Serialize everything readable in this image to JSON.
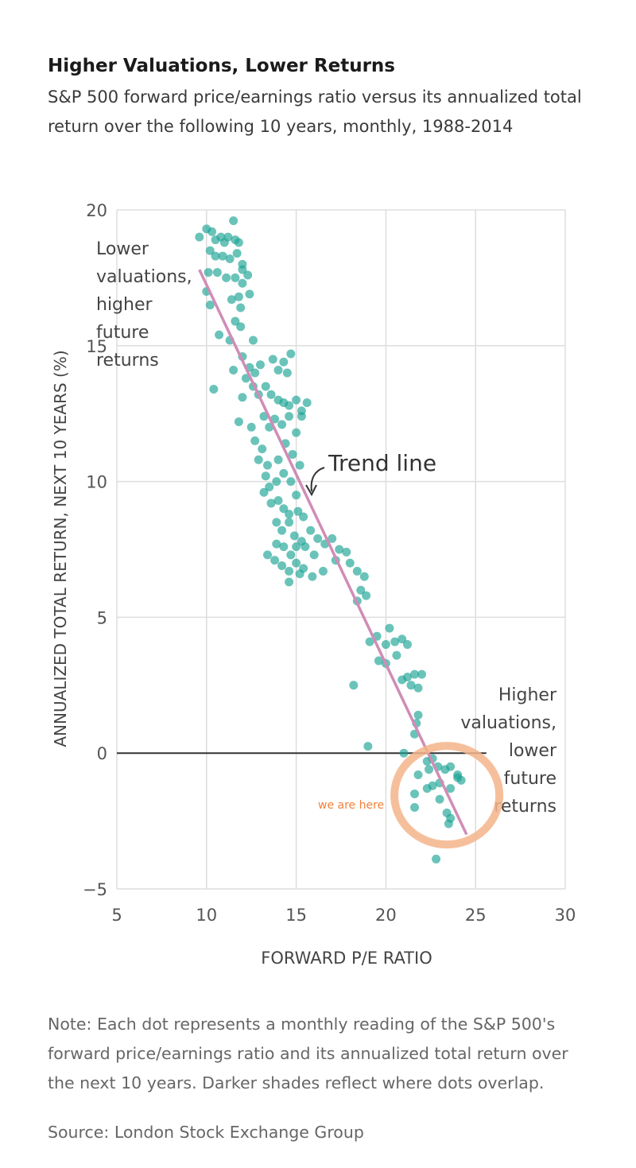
{
  "title": "Higher Valuations, Lower Returns",
  "subtitle": "S&P 500 forward price/earnings ratio versus its annualized total return over the following 10 years, monthly, 1988-2014",
  "note": "Note: Each dot represents a monthly reading of the S&P 500's forward price/earnings ratio and its annualized total return over the next 10 years. Darker shades reflect where dots overlap.",
  "source": "Source: London Stock Exchange Group",
  "colors": {
    "dots": "#1aa394",
    "trend": "#d08cb6",
    "circle": "#f5b48a",
    "we_are_here": "#f0813a",
    "zero_line": "#333333",
    "grid": "#dddddd"
  },
  "chart_data": {
    "type": "scatter",
    "xlabel": "FORWARD P/E RATIO",
    "ylabel": "ANNUALIZED TOTAL RETURN, NEXT 10 YEARS  (%)",
    "xlim": [
      5,
      30
    ],
    "ylim": [
      -5,
      20
    ],
    "xticks": [
      "5",
      "10",
      "15",
      "20",
      "25",
      "30"
    ],
    "yticks": [
      "20",
      "15",
      "10",
      "5",
      "0",
      "−5"
    ],
    "grid": true,
    "trend_line": {
      "label": "Trend line",
      "from": [
        9.6,
        17.8
      ],
      "to": [
        24.5,
        -3.0
      ]
    },
    "annotations": {
      "low": [
        "Lower",
        "valuations,",
        "higher",
        "future",
        "returns"
      ],
      "high": [
        "Higher",
        "valuations,",
        "lower",
        "future",
        "returns"
      ],
      "we_are_here": "we are here",
      "circle_center": [
        23.4,
        -1.55
      ]
    },
    "points": [
      [
        9.6,
        19.0
      ],
      [
        10.0,
        19.3
      ],
      [
        10.3,
        19.2
      ],
      [
        10.5,
        18.9
      ],
      [
        10.8,
        19.0
      ],
      [
        11.0,
        18.8
      ],
      [
        11.2,
        19.0
      ],
      [
        11.5,
        19.6
      ],
      [
        11.6,
        18.9
      ],
      [
        11.8,
        18.8
      ],
      [
        10.2,
        18.5
      ],
      [
        10.5,
        18.3
      ],
      [
        10.9,
        18.3
      ],
      [
        11.3,
        18.2
      ],
      [
        11.7,
        18.4
      ],
      [
        12.0,
        18.0
      ],
      [
        10.1,
        17.7
      ],
      [
        10.6,
        17.7
      ],
      [
        11.1,
        17.5
      ],
      [
        11.6,
        17.5
      ],
      [
        12.0,
        17.3
      ],
      [
        12.3,
        17.6
      ],
      [
        11.8,
        16.8
      ],
      [
        11.4,
        16.7
      ],
      [
        11.9,
        16.4
      ],
      [
        11.6,
        15.9
      ],
      [
        11.9,
        15.7
      ],
      [
        10.0,
        17.0
      ],
      [
        10.2,
        16.5
      ],
      [
        10.7,
        15.4
      ],
      [
        11.3,
        15.2
      ],
      [
        12.6,
        15.2
      ],
      [
        12.4,
        14.2
      ],
      [
        12.0,
        14.6
      ],
      [
        10.4,
        13.4
      ],
      [
        11.5,
        14.1
      ],
      [
        12.2,
        13.8
      ],
      [
        12.7,
        14.0
      ],
      [
        13.0,
        14.3
      ],
      [
        12.6,
        13.5
      ],
      [
        12.9,
        13.2
      ],
      [
        13.3,
        13.5
      ],
      [
        13.7,
        14.5
      ],
      [
        14.0,
        14.1
      ],
      [
        14.3,
        14.4
      ],
      [
        14.7,
        14.7
      ],
      [
        14.5,
        14.0
      ],
      [
        13.6,
        13.2
      ],
      [
        14.0,
        13.0
      ],
      [
        14.3,
        12.9
      ],
      [
        14.6,
        12.8
      ],
      [
        15.0,
        13.0
      ],
      [
        15.3,
        12.6
      ],
      [
        15.6,
        12.9
      ],
      [
        13.2,
        12.4
      ],
      [
        13.5,
        12.0
      ],
      [
        13.8,
        12.3
      ],
      [
        14.2,
        12.1
      ],
      [
        14.6,
        12.4
      ],
      [
        15.0,
        11.8
      ],
      [
        15.3,
        12.4
      ],
      [
        12.5,
        12.0
      ],
      [
        12.0,
        13.1
      ],
      [
        11.8,
        12.2
      ],
      [
        12.7,
        11.5
      ],
      [
        13.1,
        11.2
      ],
      [
        13.4,
        10.6
      ],
      [
        14.0,
        10.8
      ],
      [
        14.4,
        11.4
      ],
      [
        14.8,
        11.0
      ],
      [
        15.2,
        10.6
      ],
      [
        12.9,
        10.8
      ],
      [
        13.3,
        10.2
      ],
      [
        13.5,
        9.8
      ],
      [
        13.9,
        10.0
      ],
      [
        14.3,
        10.3
      ],
      [
        14.7,
        10.0
      ],
      [
        15.0,
        9.5
      ],
      [
        13.2,
        9.6
      ],
      [
        13.6,
        9.2
      ],
      [
        14.0,
        9.3
      ],
      [
        14.3,
        9.0
      ],
      [
        14.6,
        8.8
      ],
      [
        15.1,
        8.9
      ],
      [
        15.4,
        8.7
      ],
      [
        13.9,
        8.5
      ],
      [
        14.2,
        8.2
      ],
      [
        14.6,
        8.5
      ],
      [
        14.9,
        8.0
      ],
      [
        15.3,
        7.8
      ],
      [
        15.8,
        8.2
      ],
      [
        16.2,
        7.9
      ],
      [
        16.6,
        7.7
      ],
      [
        17.0,
        7.9
      ],
      [
        17.4,
        7.5
      ],
      [
        17.8,
        7.4
      ],
      [
        13.9,
        7.7
      ],
      [
        14.3,
        7.6
      ],
      [
        14.7,
        7.3
      ],
      [
        15.0,
        7.6
      ],
      [
        15.5,
        7.6
      ],
      [
        16.0,
        7.3
      ],
      [
        16.5,
        6.7
      ],
      [
        13.4,
        7.3
      ],
      [
        13.8,
        7.1
      ],
      [
        14.2,
        6.9
      ],
      [
        14.6,
        6.7
      ],
      [
        15.0,
        7.0
      ],
      [
        15.4,
        6.8
      ],
      [
        15.9,
        6.5
      ],
      [
        14.6,
        6.3
      ],
      [
        15.2,
        6.6
      ],
      [
        17.2,
        7.1
      ],
      [
        18.0,
        7.0
      ],
      [
        18.4,
        6.7
      ],
      [
        18.8,
        6.5
      ],
      [
        18.6,
        6.0
      ],
      [
        18.9,
        5.8
      ],
      [
        18.4,
        5.6
      ],
      [
        19.1,
        4.1
      ],
      [
        19.5,
        4.3
      ],
      [
        20.2,
        4.6
      ],
      [
        20.0,
        4.0
      ],
      [
        20.5,
        4.1
      ],
      [
        20.9,
        4.2
      ],
      [
        21.2,
        4.0
      ],
      [
        20.6,
        3.6
      ],
      [
        19.6,
        3.4
      ],
      [
        20.0,
        3.3
      ],
      [
        20.9,
        2.7
      ],
      [
        21.2,
        2.8
      ],
      [
        21.6,
        2.9
      ],
      [
        22.0,
        2.9
      ],
      [
        21.4,
        2.5
      ],
      [
        21.8,
        2.4
      ],
      [
        18.2,
        2.5
      ],
      [
        21.8,
        1.4
      ],
      [
        21.7,
        1.1
      ],
      [
        21.6,
        0.7
      ],
      [
        19.0,
        0.25
      ],
      [
        21.0,
        0.0
      ],
      [
        22.3,
        -0.3
      ],
      [
        22.4,
        -0.6
      ],
      [
        22.6,
        -0.2
      ],
      [
        22.9,
        -0.5
      ],
      [
        23.3,
        -0.6
      ],
      [
        23.6,
        -0.5
      ],
      [
        24.0,
        -0.9
      ],
      [
        24.2,
        -1.0
      ],
      [
        24.0,
        -0.8
      ],
      [
        23.6,
        -1.3
      ],
      [
        21.8,
        -0.8
      ],
      [
        21.6,
        -1.5
      ],
      [
        22.3,
        -1.3
      ],
      [
        22.6,
        -1.2
      ],
      [
        23.0,
        -1.1
      ],
      [
        23.0,
        -1.7
      ],
      [
        23.4,
        -2.2
      ],
      [
        23.6,
        -2.4
      ],
      [
        23.5,
        -2.6
      ],
      [
        21.6,
        -2.0
      ],
      [
        22.8,
        -3.9
      ],
      [
        12.4,
        16.9
      ],
      [
        12.0,
        17.8
      ]
    ]
  }
}
